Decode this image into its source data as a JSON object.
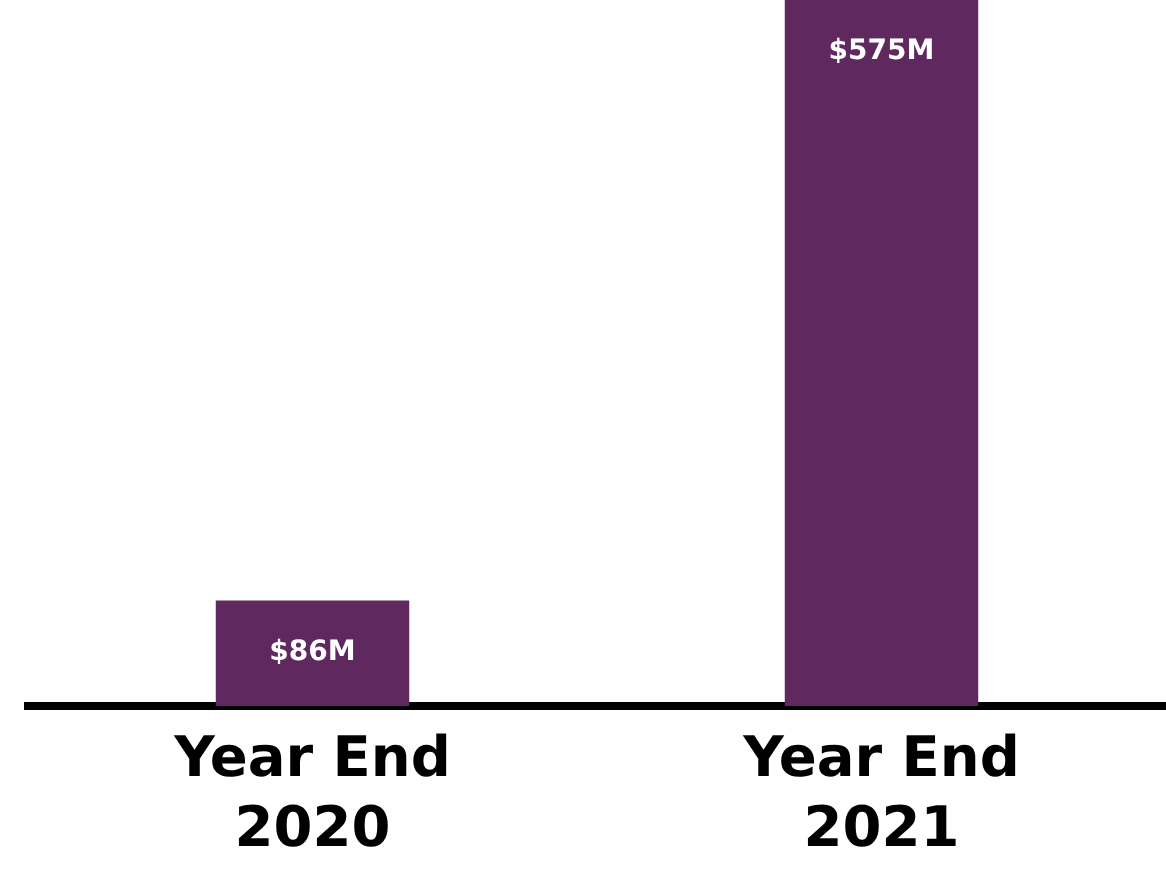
{
  "chart_data": {
    "type": "bar",
    "categories": [
      "Year End 2020",
      "Year End 2021"
    ],
    "values": [
      86,
      575
    ],
    "color": "#5f2960",
    "value_labels": [
      "$86M",
      "$575M"
    ],
    "grid": false,
    "legend": false
  }
}
